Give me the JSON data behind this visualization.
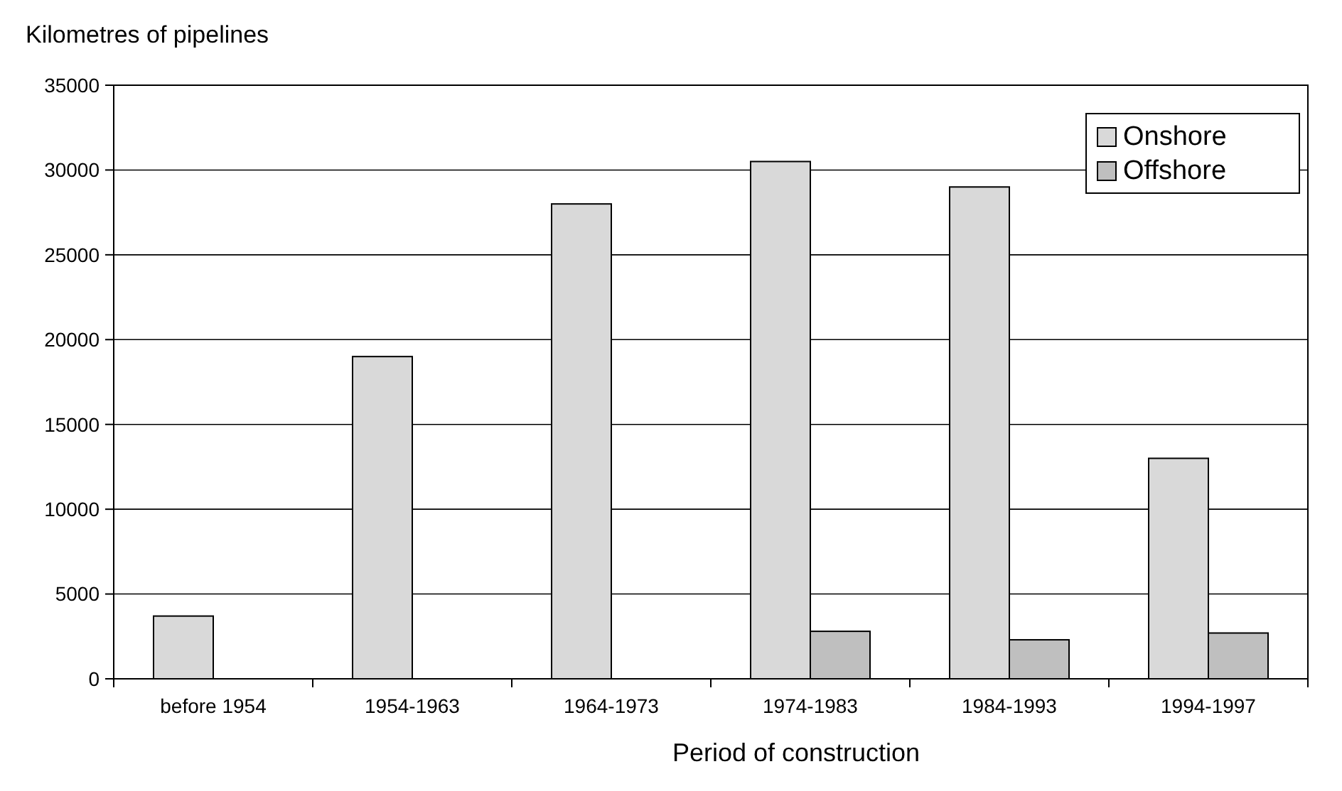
{
  "chart_data": {
    "type": "bar",
    "ylabel": "Kilometres of pipelines",
    "xlabel": "Period of construction",
    "categories": [
      "before 1954",
      "1954-1963",
      "1964-1973",
      "1974-1983",
      "1984-1993",
      "1994-1997"
    ],
    "series": [
      {
        "name": "Onshore",
        "color": "#d9d9d9",
        "values": [
          3700,
          19000,
          28000,
          30500,
          29000,
          13000
        ]
      },
      {
        "name": "Offshore",
        "color": "#bfbfbf",
        "values": [
          null,
          null,
          null,
          2800,
          2300,
          2700
        ]
      }
    ],
    "ylim": [
      0,
      35000
    ],
    "yticks": [
      0,
      5000,
      10000,
      15000,
      20000,
      25000,
      30000,
      35000
    ],
    "grid": "y",
    "legend": "top right"
  }
}
